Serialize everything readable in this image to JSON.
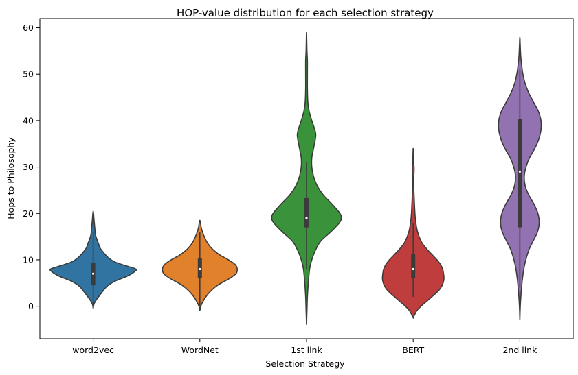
{
  "chart_data": {
    "type": "violin",
    "title": "HOP-value distribution for each selection strategy",
    "xlabel": "Selection Strategy",
    "ylabel": "Hops to Philosophy",
    "ylim": [
      -7,
      62
    ],
    "yticks": [
      0,
      10,
      20,
      30,
      40,
      50,
      60
    ],
    "grid": false,
    "categories": [
      "word2vec",
      "WordNet",
      "1st link",
      "BERT",
      "2nd link"
    ],
    "violins": [
      {
        "category": "word2vec",
        "color": "#3274a1",
        "min": -0.5,
        "max": 20.5,
        "q1": 4.5,
        "median": 7,
        "q3": 9.3,
        "whisker_low": 0.5,
        "whisker_high": 16,
        "profile": [
          [
            -0.5,
            0
          ],
          [
            0.5,
            0.02
          ],
          [
            1.5,
            0.08
          ],
          [
            2.5,
            0.16
          ],
          [
            3.5,
            0.24
          ],
          [
            4.5,
            0.34
          ],
          [
            5.5,
            0.52
          ],
          [
            6.5,
            0.78
          ],
          [
            7.5,
            0.95
          ],
          [
            8,
            0.97
          ],
          [
            8.5,
            0.82
          ],
          [
            9.5,
            0.5
          ],
          [
            10.5,
            0.34
          ],
          [
            11.5,
            0.24
          ],
          [
            12.5,
            0.16
          ],
          [
            13.5,
            0.12
          ],
          [
            14.5,
            0.08
          ],
          [
            15.5,
            0.05
          ],
          [
            16.5,
            0.04
          ],
          [
            17.5,
            0.03
          ],
          [
            18.5,
            0.02
          ],
          [
            20.5,
            0
          ]
        ]
      },
      {
        "category": "WordNet",
        "color": "#e1812c",
        "min": -1,
        "max": 18.5,
        "q1": 6,
        "median": 8,
        "q3": 10.3,
        "whisker_low": 0,
        "whisker_high": 16,
        "profile": [
          [
            -1,
            0
          ],
          [
            0,
            0.02
          ],
          [
            1.5,
            0.1
          ],
          [
            3,
            0.22
          ],
          [
            4.5,
            0.4
          ],
          [
            6,
            0.68
          ],
          [
            7,
            0.82
          ],
          [
            8,
            0.85
          ],
          [
            9,
            0.8
          ],
          [
            10,
            0.65
          ],
          [
            11,
            0.46
          ],
          [
            12,
            0.32
          ],
          [
            13,
            0.22
          ],
          [
            14,
            0.15
          ],
          [
            15,
            0.1
          ],
          [
            16,
            0.06
          ],
          [
            17,
            0.03
          ],
          [
            18.5,
            0
          ]
        ]
      },
      {
        "category": "1st link",
        "color": "#3a923a",
        "min": -4,
        "max": 59,
        "q1": 17,
        "median": 19,
        "q3": 23.3,
        "whisker_low": 8,
        "whisker_high": 31,
        "profile": [
          [
            -4,
            0
          ],
          [
            -1,
            0.01
          ],
          [
            2,
            0.02
          ],
          [
            5,
            0.04
          ],
          [
            8,
            0.07
          ],
          [
            10,
            0.12
          ],
          [
            12,
            0.2
          ],
          [
            14,
            0.32
          ],
          [
            16,
            0.55
          ],
          [
            18,
            0.75
          ],
          [
            19,
            0.79
          ],
          [
            20,
            0.76
          ],
          [
            22,
            0.58
          ],
          [
            24,
            0.38
          ],
          [
            26,
            0.24
          ],
          [
            28,
            0.16
          ],
          [
            30,
            0.12
          ],
          [
            32,
            0.12
          ],
          [
            34,
            0.16
          ],
          [
            36,
            0.2
          ],
          [
            37,
            0.21
          ],
          [
            38,
            0.19
          ],
          [
            40,
            0.12
          ],
          [
            42,
            0.06
          ],
          [
            44,
            0.03
          ],
          [
            47,
            0.02
          ],
          [
            50,
            0.02
          ],
          [
            53,
            0.02
          ],
          [
            55,
            0.01
          ],
          [
            59,
            0
          ]
        ]
      },
      {
        "category": "BERT",
        "color": "#c03d3e",
        "min": -2.5,
        "max": 34,
        "q1": 6,
        "median": 8,
        "q3": 11.3,
        "whisker_low": 2,
        "whisker_high": 18,
        "profile": [
          [
            -2.5,
            0
          ],
          [
            -1,
            0.08
          ],
          [
            0,
            0.18
          ],
          [
            1,
            0.3
          ],
          [
            2,
            0.42
          ],
          [
            3,
            0.54
          ],
          [
            4,
            0.63
          ],
          [
            5,
            0.68
          ],
          [
            6,
            0.7
          ],
          [
            7,
            0.69
          ],
          [
            8,
            0.67
          ],
          [
            9,
            0.62
          ],
          [
            10,
            0.54
          ],
          [
            11,
            0.44
          ],
          [
            12,
            0.34
          ],
          [
            13,
            0.25
          ],
          [
            14,
            0.18
          ],
          [
            16,
            0.1
          ],
          [
            18,
            0.06
          ],
          [
            20,
            0.04
          ],
          [
            24,
            0.02
          ],
          [
            27,
            0.01
          ],
          [
            29,
            0.02
          ],
          [
            30,
            0.02
          ],
          [
            31,
            0.01
          ],
          [
            34,
            0
          ]
        ]
      },
      {
        "category": "2nd link",
        "color": "#9372b2",
        "min": -3,
        "max": 58,
        "q1": 17,
        "median": 29,
        "q3": 40.3,
        "whisker_low": 4,
        "whisker_high": 51,
        "profile": [
          [
            -3,
            0
          ],
          [
            0,
            0.01
          ],
          [
            3,
            0.03
          ],
          [
            6,
            0.06
          ],
          [
            9,
            0.11
          ],
          [
            12,
            0.2
          ],
          [
            14,
            0.3
          ],
          [
            16,
            0.4
          ],
          [
            18,
            0.44
          ],
          [
            20,
            0.41
          ],
          [
            22,
            0.32
          ],
          [
            24,
            0.2
          ],
          [
            26,
            0.12
          ],
          [
            28,
            0.1
          ],
          [
            30,
            0.14
          ],
          [
            32,
            0.22
          ],
          [
            34,
            0.34
          ],
          [
            36,
            0.43
          ],
          [
            38,
            0.48
          ],
          [
            40,
            0.48
          ],
          [
            42,
            0.42
          ],
          [
            44,
            0.31
          ],
          [
            46,
            0.2
          ],
          [
            48,
            0.12
          ],
          [
            50,
            0.07
          ],
          [
            52,
            0.04
          ],
          [
            54,
            0.02
          ],
          [
            56,
            0.01
          ],
          [
            58,
            0
          ]
        ]
      }
    ]
  }
}
